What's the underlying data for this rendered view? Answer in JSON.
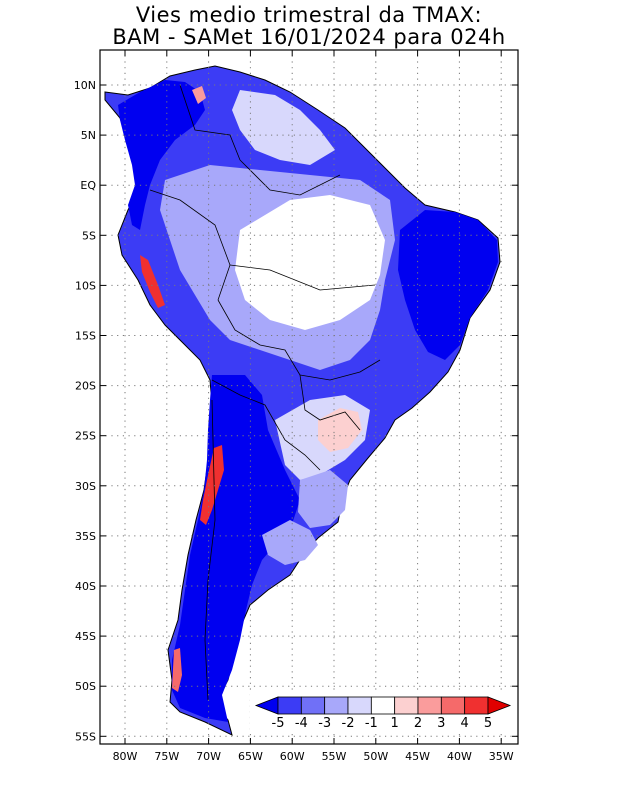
{
  "title_line1": "Vies medio trimestral da TMAX:",
  "title_line2": "BAM - SAMet 16/01/2024  para 024h",
  "y_labels": [
    "10N",
    "5N",
    "EQ",
    "5S",
    "10S",
    "15S",
    "20S",
    "25S",
    "30S",
    "35S",
    "40S",
    "45S",
    "50S",
    "55S"
  ],
  "x_labels": [
    "80W",
    "75W",
    "70W",
    "65W",
    "60W",
    "55W",
    "50W",
    "45W",
    "40W",
    "35W"
  ],
  "colorbar": {
    "labels": [
      "-5",
      "-4",
      "-3",
      "-2",
      "-1",
      "1",
      "2",
      "3",
      "4",
      "5"
    ],
    "colors": [
      "#0000f0",
      "#3c3cf5",
      "#7070f7",
      "#a8a8fa",
      "#d8d8fc",
      "#ffffff",
      "#fcd0d0",
      "#fa9c9c",
      "#f56a6a",
      "#f03030",
      "#e00000"
    ]
  },
  "chart_data": {
    "type": "heatmap",
    "title": "Vies medio trimestral da TMAX: BAM - SAMet 16/01/2024  para 024h",
    "lat_range": [
      -55,
      12
    ],
    "lon_range": [
      -82,
      -34
    ],
    "grid": true,
    "legend_placement": "bottom-right",
    "levels": [
      -5,
      -4,
      -3,
      -2,
      -1,
      1,
      2,
      3,
      4,
      5
    ]
  }
}
